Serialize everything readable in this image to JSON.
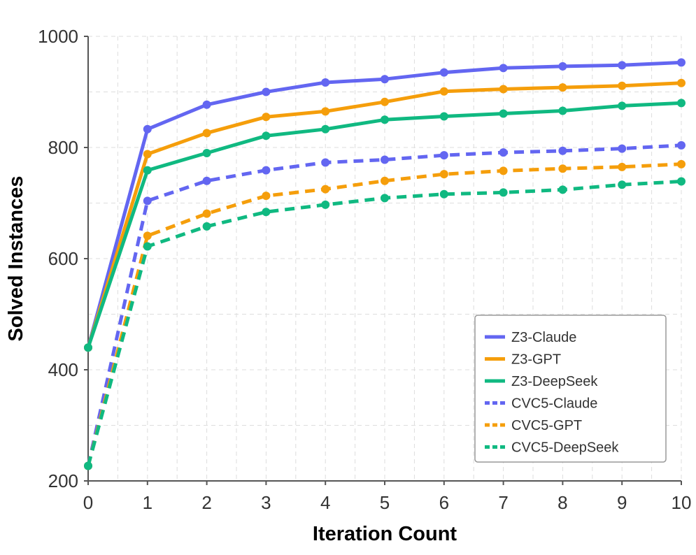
{
  "chart_data": {
    "type": "line",
    "title": "",
    "xlabel": "Iteration Count",
    "ylabel": "Solved Instances",
    "x": [
      0,
      1,
      2,
      3,
      4,
      5,
      6,
      7,
      8,
      9,
      10
    ],
    "xlim": [
      0,
      10
    ],
    "ylim": [
      200,
      1000
    ],
    "xticks": [
      "0",
      "1",
      "2",
      "3",
      "4",
      "5",
      "6",
      "7",
      "8",
      "9",
      "10"
    ],
    "yticks": [
      "200",
      "400",
      "600",
      "800",
      "1000"
    ],
    "grid": true,
    "legend_position": "bottom-right",
    "series": [
      {
        "name": "Z3-Claude",
        "color": "#6366f1",
        "style": "solid",
        "values": [
          440,
          833,
          877,
          900,
          917,
          923,
          935,
          943,
          946,
          948,
          953
        ]
      },
      {
        "name": "Z3-GPT",
        "color": "#f59e0b",
        "style": "solid",
        "values": [
          440,
          788,
          826,
          855,
          865,
          882,
          901,
          905,
          908,
          911,
          916
        ]
      },
      {
        "name": "Z3-DeepSeek",
        "color": "#10b981",
        "style": "solid",
        "values": [
          440,
          759,
          790,
          821,
          833,
          850,
          856,
          861,
          866,
          875,
          880
        ]
      },
      {
        "name": "CVC5-Claude",
        "color": "#6366f1",
        "style": "dashed",
        "values": [
          227,
          704,
          740,
          759,
          773,
          778,
          786,
          791,
          794,
          798,
          804
        ]
      },
      {
        "name": "CVC5-GPT",
        "color": "#f59e0b",
        "style": "dashed",
        "values": [
          227,
          641,
          681,
          713,
          725,
          740,
          752,
          758,
          762,
          765,
          770
        ]
      },
      {
        "name": "CVC5-DeepSeek",
        "color": "#10b981",
        "style": "dashed",
        "values": [
          227,
          622,
          658,
          684,
          697,
          709,
          716,
          719,
          724,
          733,
          739
        ]
      }
    ]
  }
}
